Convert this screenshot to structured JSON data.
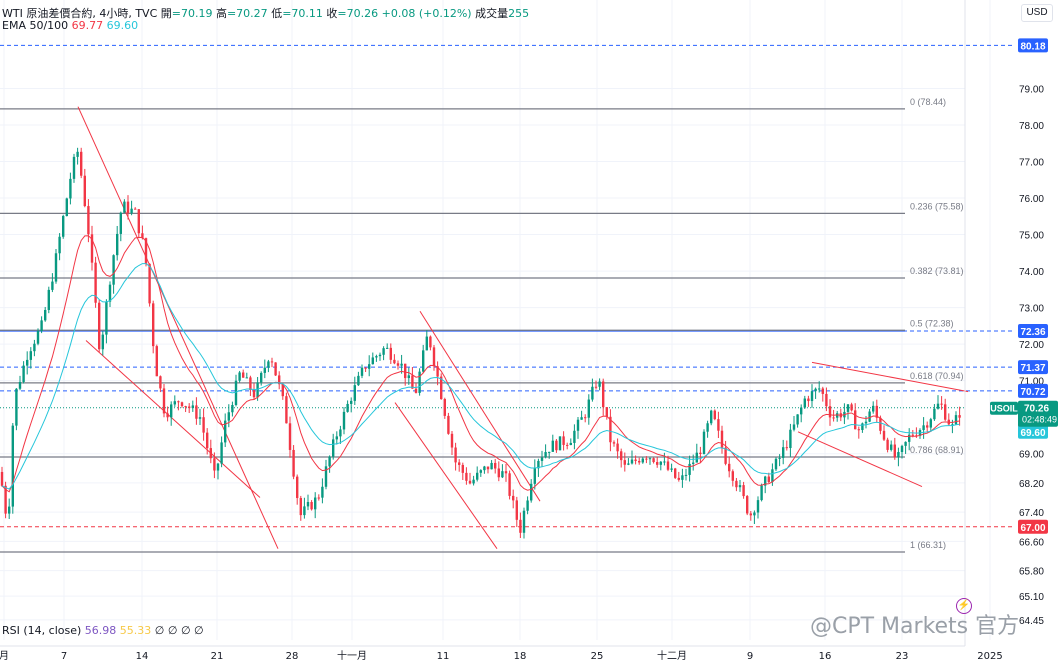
{
  "header": {
    "symbol": "WTI 原油差價合約, 4小時, TVC",
    "open_label": "開",
    "open": "=70.19",
    "high_label": "高",
    "high": "=70.27",
    "low_label": "低",
    "low": "=70.11",
    "close_label": "收",
    "close": "=70.26",
    "change": "+0.08 (+0.12%)",
    "volume_label": "成交量",
    "volume": "255"
  },
  "ema": {
    "label": "EMA 50/100",
    "v1": "69.77",
    "v2": "69.60"
  },
  "rsi": {
    "label": "RSI (14, close)",
    "v1": "56.98",
    "v2": "55.33",
    "rest": "∅ ∅ ∅ ∅"
  },
  "currency": "USD",
  "watermark": "@CPT Markets 官方",
  "colors": {
    "up": "#089981",
    "down": "#f23645",
    "ema50": "#f23645",
    "ema100": "#26c6da",
    "trend": "#f23645",
    "fib": "#787b86",
    "hline": "#2962ff"
  },
  "chart_data": {
    "type": "candlestick",
    "ylim": [
      63.9,
      80.6
    ],
    "y_ticks": [
      "79.00",
      "78.00",
      "77.00",
      "76.00",
      "75.00",
      "74.00",
      "73.00",
      "72.00",
      "71.00",
      "69.00",
      "68.20",
      "67.40",
      "66.60",
      "65.80",
      "65.10",
      "64.45"
    ],
    "x_ticks": [
      "月",
      "7",
      "14",
      "21",
      "28",
      "十一月",
      "11",
      "18",
      "25",
      "十二月",
      "9",
      "16",
      "23",
      "2025"
    ],
    "price_badges": [
      {
        "label": "80.18",
        "value": 80.18,
        "color": "#2962ff",
        "style": "dashed"
      },
      {
        "label": "72.36",
        "value": 72.36,
        "color": "#2962ff",
        "style": "dashed"
      },
      {
        "label": "71.37",
        "value": 71.37,
        "color": "#2962ff",
        "style": "dashed"
      },
      {
        "label": "70.72",
        "value": 70.72,
        "color": "#2962ff",
        "style": "dashed"
      },
      {
        "label": "69.77",
        "value": 69.77,
        "color": "#f23645"
      },
      {
        "label": "69.60",
        "value": 69.6,
        "color": "#26c6da"
      },
      {
        "label": "67.00",
        "value": 67.0,
        "color": "#f23645",
        "style": "dashed"
      }
    ],
    "current": {
      "symbol": "USOIL",
      "price": "70.26",
      "countdown": "02:48:49",
      "value": 70.26,
      "color": "#089981"
    },
    "fib_levels": [
      {
        "label": "0 (78.44)",
        "value": 78.44
      },
      {
        "label": "0.236 (75.58)",
        "value": 75.58
      },
      {
        "label": "0.382 (73.81)",
        "value": 73.81
      },
      {
        "label": "0.5 (72.38)",
        "value": 72.38
      },
      {
        "label": "0.618 (70.94)",
        "value": 70.94
      },
      {
        "label": "0.786 (68.91)",
        "value": 68.91
      },
      {
        "label": "1 (66.31)",
        "value": 66.31
      }
    ],
    "closes_key_points": [
      {
        "x": 0,
        "y": 68.5
      },
      {
        "x": 8,
        "y": 67.0
      },
      {
        "x": 14,
        "y": 70.5
      },
      {
        "x": 28,
        "y": 71.8
      },
      {
        "x": 42,
        "y": 72.5
      },
      {
        "x": 55,
        "y": 74.2
      },
      {
        "x": 72,
        "y": 76.8
      },
      {
        "x": 78,
        "y": 77.3
      },
      {
        "x": 88,
        "y": 75.2
      },
      {
        "x": 100,
        "y": 71.8
      },
      {
        "x": 112,
        "y": 74.2
      },
      {
        "x": 122,
        "y": 75.8
      },
      {
        "x": 135,
        "y": 75.6
      },
      {
        "x": 145,
        "y": 74.5
      },
      {
        "x": 155,
        "y": 71.5
      },
      {
        "x": 165,
        "y": 70.1
      },
      {
        "x": 180,
        "y": 70.5
      },
      {
        "x": 200,
        "y": 70.0
      },
      {
        "x": 215,
        "y": 68.3
      },
      {
        "x": 225,
        "y": 69.8
      },
      {
        "x": 240,
        "y": 71.2
      },
      {
        "x": 255,
        "y": 70.6
      },
      {
        "x": 270,
        "y": 71.8
      },
      {
        "x": 285,
        "y": 70.2
      },
      {
        "x": 300,
        "y": 67.3
      },
      {
        "x": 318,
        "y": 67.8
      },
      {
        "x": 335,
        "y": 69.4
      },
      {
        "x": 350,
        "y": 70.5
      },
      {
        "x": 365,
        "y": 71.4
      },
      {
        "x": 385,
        "y": 71.9
      },
      {
        "x": 400,
        "y": 71.5
      },
      {
        "x": 415,
        "y": 70.6
      },
      {
        "x": 428,
        "y": 72.3
      },
      {
        "x": 440,
        "y": 70.8
      },
      {
        "x": 455,
        "y": 68.8
      },
      {
        "x": 470,
        "y": 68.2
      },
      {
        "x": 490,
        "y": 68.7
      },
      {
        "x": 505,
        "y": 68.4
      },
      {
        "x": 520,
        "y": 66.9
      },
      {
        "x": 535,
        "y": 68.8
      },
      {
        "x": 550,
        "y": 69.2
      },
      {
        "x": 570,
        "y": 69.4
      },
      {
        "x": 585,
        "y": 70.1
      },
      {
        "x": 598,
        "y": 71.1
      },
      {
        "x": 610,
        "y": 69.4
      },
      {
        "x": 625,
        "y": 68.6
      },
      {
        "x": 645,
        "y": 69.0
      },
      {
        "x": 660,
        "y": 68.8
      },
      {
        "x": 680,
        "y": 68.2
      },
      {
        "x": 700,
        "y": 69.1
      },
      {
        "x": 712,
        "y": 70.1
      },
      {
        "x": 725,
        "y": 68.9
      },
      {
        "x": 740,
        "y": 68.0
      },
      {
        "x": 750,
        "y": 67.3
      },
      {
        "x": 765,
        "y": 68.2
      },
      {
        "x": 780,
        "y": 68.9
      },
      {
        "x": 792,
        "y": 69.6
      },
      {
        "x": 805,
        "y": 70.5
      },
      {
        "x": 820,
        "y": 70.8
      },
      {
        "x": 832,
        "y": 70.0
      },
      {
        "x": 848,
        "y": 70.2
      },
      {
        "x": 860,
        "y": 69.6
      },
      {
        "x": 872,
        "y": 70.3
      },
      {
        "x": 885,
        "y": 69.4
      },
      {
        "x": 897,
        "y": 68.8
      },
      {
        "x": 910,
        "y": 69.5
      },
      {
        "x": 925,
        "y": 69.8
      },
      {
        "x": 940,
        "y": 70.4
      },
      {
        "x": 952,
        "y": 69.7
      },
      {
        "x": 962,
        "y": 70.26
      }
    ]
  }
}
